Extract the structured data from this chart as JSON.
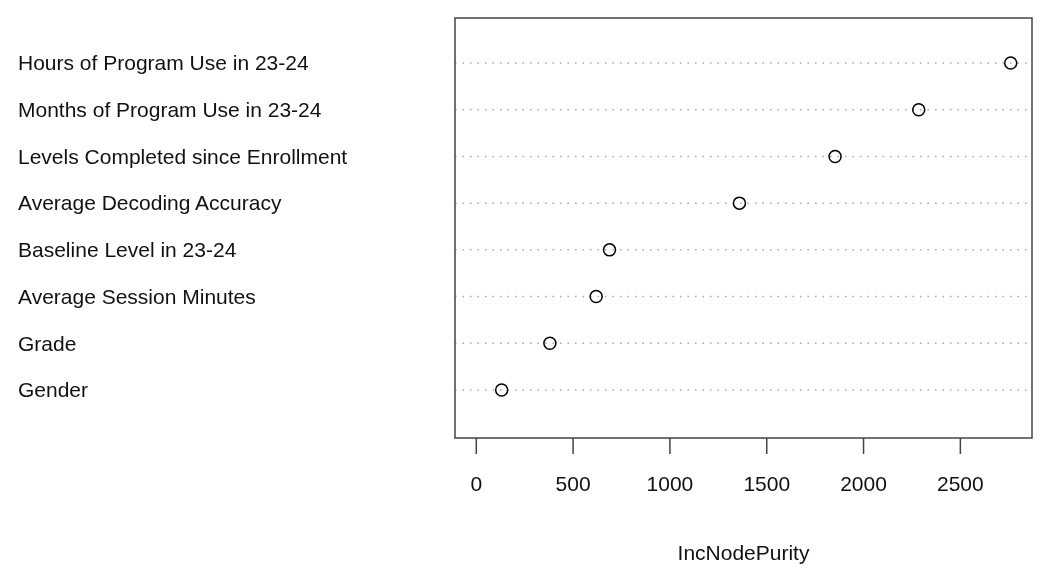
{
  "chart_data": {
    "type": "scatter",
    "orientation": "horizontal",
    "xlabel": "IncNodePurity",
    "categories": [
      "Hours of Program Use in 23-24",
      "Months of Program Use in 23-24",
      "Levels Completed since Enrollment",
      "Average Decoding Accuracy",
      "Baseline Level in 23-24",
      "Average Session Minutes",
      "Grade",
      "Gender"
    ],
    "series": [
      {
        "color": "#000000",
        "values": [
          2760,
          2285,
          1853,
          1359,
          688,
          619,
          380,
          131
        ]
      }
    ],
    "xlim": [
      -110,
      2870
    ],
    "xticks": [
      0,
      500,
      1000,
      1500,
      2000,
      2500
    ],
    "grid": "y",
    "marker": "circle"
  }
}
